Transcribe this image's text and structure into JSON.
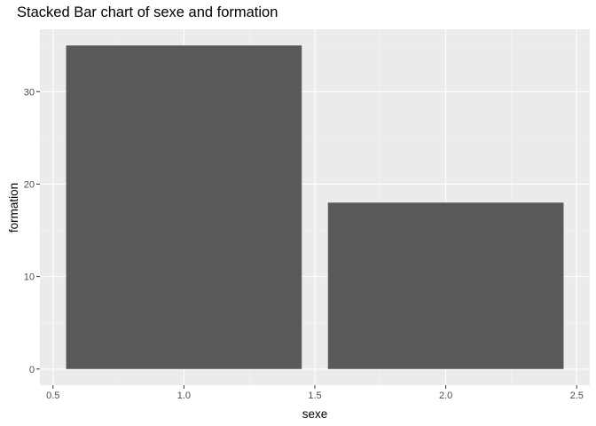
{
  "chart_data": {
    "type": "bar",
    "title": "Stacked Bar chart of sexe and formation",
    "xlabel": "sexe",
    "ylabel": "formation",
    "x": [
      1,
      2
    ],
    "values": [
      35,
      18
    ],
    "bar_width": 0.9,
    "xlim": [
      0.45,
      2.55
    ],
    "ylim": [
      -1.75,
      36.75
    ],
    "xticks": [
      0.5,
      1.0,
      1.5,
      2.0,
      2.5
    ],
    "xtick_labels": [
      "0.5",
      "1.0",
      "1.5",
      "2.0",
      "2.5"
    ],
    "yticks": [
      0,
      10,
      20,
      30
    ],
    "ytick_labels": [
      "0",
      "10",
      "20",
      "30"
    ],
    "grid": true,
    "legend": "none",
    "colors": {
      "bar": "#595959",
      "panel": "#ebebeb",
      "grid_major": "#ffffff",
      "grid_minor": "#f5f5f5",
      "tick": "#333333"
    }
  }
}
